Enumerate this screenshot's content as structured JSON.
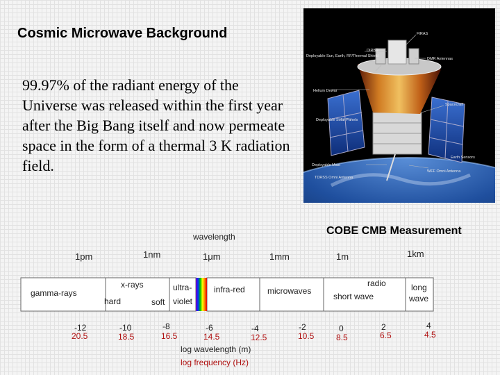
{
  "slide": {
    "title": "Cosmic Microwave Background",
    "body": "99.97% of the radiant energy of the Universe was released within the first year after the Big Bang itself and now permeate space in the form of a thermal 3 K radiation field."
  },
  "photo": {
    "labels": [
      "FIRAS",
      "DIRBE",
      "Deployable Sun, Earth, RF/Thermal Shield",
      "DMR Antennas",
      "Helium Dewar",
      "Spacecraft",
      "Deployable Solar Panels",
      "Earth Sensors",
      "Deployable Mast",
      "WFF Omni Antenna",
      "TDRSS Omni Antenna"
    ]
  },
  "cobe_label": "COBE CMB Measurement",
  "spectrum": {
    "wavelength_label": "wavelength",
    "units": [
      "1pm",
      "1nm",
      "1μm",
      "1mm",
      "1m",
      "1km"
    ],
    "bands": {
      "gamma": "gamma-rays",
      "xray": "x-rays",
      "hard": "hard",
      "soft": "soft",
      "ultra": "ultra-",
      "violet": "violet",
      "infrared": "infra-red",
      "microwaves": "microwaves",
      "radio": "radio",
      "short_wave": "short wave",
      "long": "long",
      "wave": "wave"
    },
    "log_wavelengths": [
      "-12",
      "-10",
      "-8",
      "-6",
      "-4",
      "-2",
      "0",
      "2",
      "4"
    ],
    "log_frequencies": [
      "20.5",
      "18.5",
      "16.5",
      "14.5",
      "12.5",
      "10.5",
      "8.5",
      "6.5",
      "4.5"
    ],
    "axis_wavelength": "log wavelength (m)",
    "axis_frequency": "log frequency (Hz)"
  }
}
